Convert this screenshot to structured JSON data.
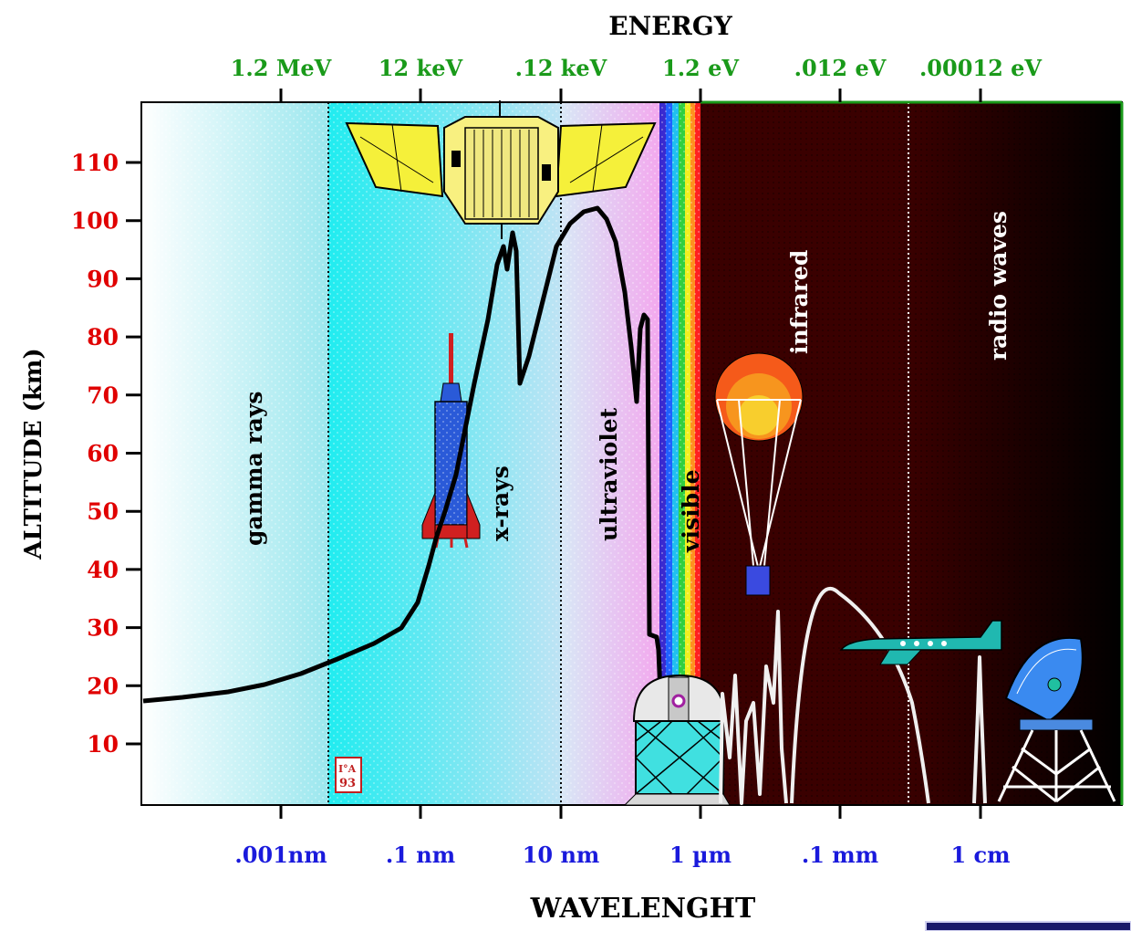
{
  "titles": {
    "top": "ENERGY",
    "bottom": "WAVELENGHT",
    "left": "ALTITUDE (km)"
  },
  "energy_ticks": [
    "1.2 MeV",
    "12 keV",
    ".12 keV",
    "1.2 eV",
    ".012 eV",
    ".00012 eV"
  ],
  "wavelength_ticks": [
    ".001nm",
    ".1 nm",
    "10 nm",
    "1 µm",
    ".1 mm",
    "1 cm"
  ],
  "altitude_ticks": [
    "10",
    "20",
    "30",
    "40",
    "50",
    "60",
    "70",
    "80",
    "90",
    "100",
    "110"
  ],
  "regions": {
    "gamma": "gamma rays",
    "xray": "x-rays",
    "uv": "ultraviolet",
    "visible": "visible",
    "ir": "infrared",
    "radio": "radio waves"
  },
  "colors": {
    "energy": "#1a9a1a",
    "wavelength": "#1a1adc",
    "altitude": "#e00000",
    "frame": "#000000"
  },
  "chart_data": {
    "type": "line",
    "title": "",
    "xlabel": "WAVELENGHT",
    "ylabel": "ALTITUDE (km)",
    "ylim": [
      0,
      120
    ],
    "x_scale": "log",
    "series": [
      {
        "name": "",
        "points": [
          [
            "0.00001 nm",
            17
          ],
          [
            "0.0001 nm",
            19
          ],
          [
            "0.001 nm",
            20
          ],
          [
            "0.01 nm",
            23
          ],
          [
            "0.1 nm",
            35
          ],
          [
            "0.3 nm",
            60
          ],
          [
            "1 nm",
            90
          ],
          [
            "2 nm",
            97
          ],
          [
            "3 nm",
            70
          ],
          [
            "20 nm",
            102
          ],
          [
            "50 nm",
            90
          ],
          [
            "100 nm",
            82
          ],
          [
            "150 nm",
            30
          ],
          [
            "200 nm",
            28
          ],
          [
            "300 nm",
            0
          ]
        ]
      }
    ]
  }
}
